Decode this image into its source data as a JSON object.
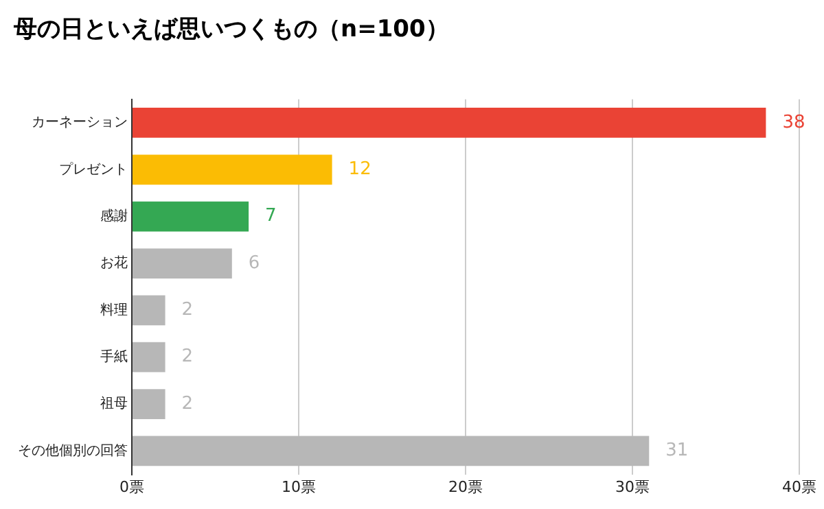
{
  "chart_data": {
    "type": "bar",
    "orientation": "horizontal",
    "title": "母の日といえば思いつくもの（n=100）",
    "categories": [
      "カーネーション",
      "プレゼント",
      "感謝",
      "お花",
      "料理",
      "手紙",
      "祖母",
      "その他個別の回答"
    ],
    "values": [
      38,
      12,
      7,
      6,
      2,
      2,
      2,
      31
    ],
    "colors": [
      "#ea4335",
      "#fbbc04",
      "#34a853",
      "#b7b7b7",
      "#b7b7b7",
      "#b7b7b7",
      "#b7b7b7",
      "#b7b7b7"
    ],
    "xlim": [
      0,
      40
    ],
    "xticks": [
      {
        "value": 0,
        "label": "0票"
      },
      {
        "value": 10,
        "label": "10票"
      },
      {
        "value": 20,
        "label": "20票"
      },
      {
        "value": 30,
        "label": "30票"
      },
      {
        "value": 40,
        "label": "40票"
      }
    ],
    "grid": "x",
    "legend": false,
    "data_labels": true
  }
}
